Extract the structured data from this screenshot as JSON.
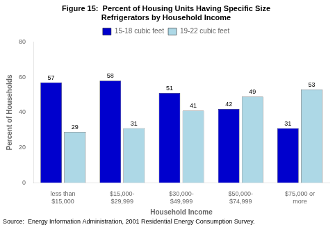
{
  "chart_data": {
    "type": "bar",
    "title": "Figure 15:  Percent of Housing Units Having Specific Size\nRefrigerators by Household Income",
    "categories": [
      "less than\n$15,000",
      "$15,000-\n$29,999",
      "$30,000-\n$49,999",
      "$50,000-\n$74,999",
      "$75,000 or\nmore"
    ],
    "series": [
      {
        "name": "15-18 cubic feet",
        "color": "#0000CD",
        "values": [
          57,
          58,
          51,
          42,
          31
        ]
      },
      {
        "name": "19-22 cubic feet",
        "color": "#ADD8E6",
        "values": [
          29,
          31,
          41,
          49,
          53
        ]
      }
    ],
    "xlabel": "Household Income",
    "ylabel": "Percent of Households",
    "ylim": [
      0,
      80
    ],
    "yticks": [
      0,
      20,
      40,
      60,
      80
    ],
    "grid": false,
    "legend": "top",
    "data_labels": true,
    "annotations": [
      "Source:  Energy Information Administration, 2001 Residential Energy Consumption Survey."
    ]
  }
}
